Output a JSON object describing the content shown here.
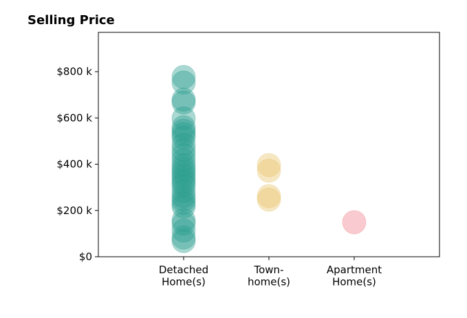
{
  "chart_data": {
    "type": "strip",
    "title": "Selling Price",
    "categories": [
      "Detached\nHome(s)",
      "Town-\nhome(s)",
      "Apartment\nHome(s)"
    ],
    "colors": [
      "#2a9d8f",
      "#e9c46a",
      "#ef7b86"
    ],
    "values": [
      [
        777,
        753,
        679,
        667,
        598,
        560,
        545,
        530,
        515,
        485,
        461,
        440,
        417,
        396,
        381,
        366,
        351,
        336,
        321,
        307,
        283,
        262,
        247,
        232,
        217,
        158,
        143,
        113,
        83,
        68
      ],
      [
        396,
        372,
        262,
        247
      ],
      [
        149
      ]
    ],
    "ylim": [
      0,
      970
    ],
    "yticks": [
      {
        "value": 0,
        "label": "$0"
      },
      {
        "value": 200,
        "label": "$200 k"
      },
      {
        "value": 400,
        "label": "$400 k"
      },
      {
        "value": 600,
        "label": "$600 k"
      },
      {
        "value": 800,
        "label": "$800 k"
      }
    ]
  }
}
